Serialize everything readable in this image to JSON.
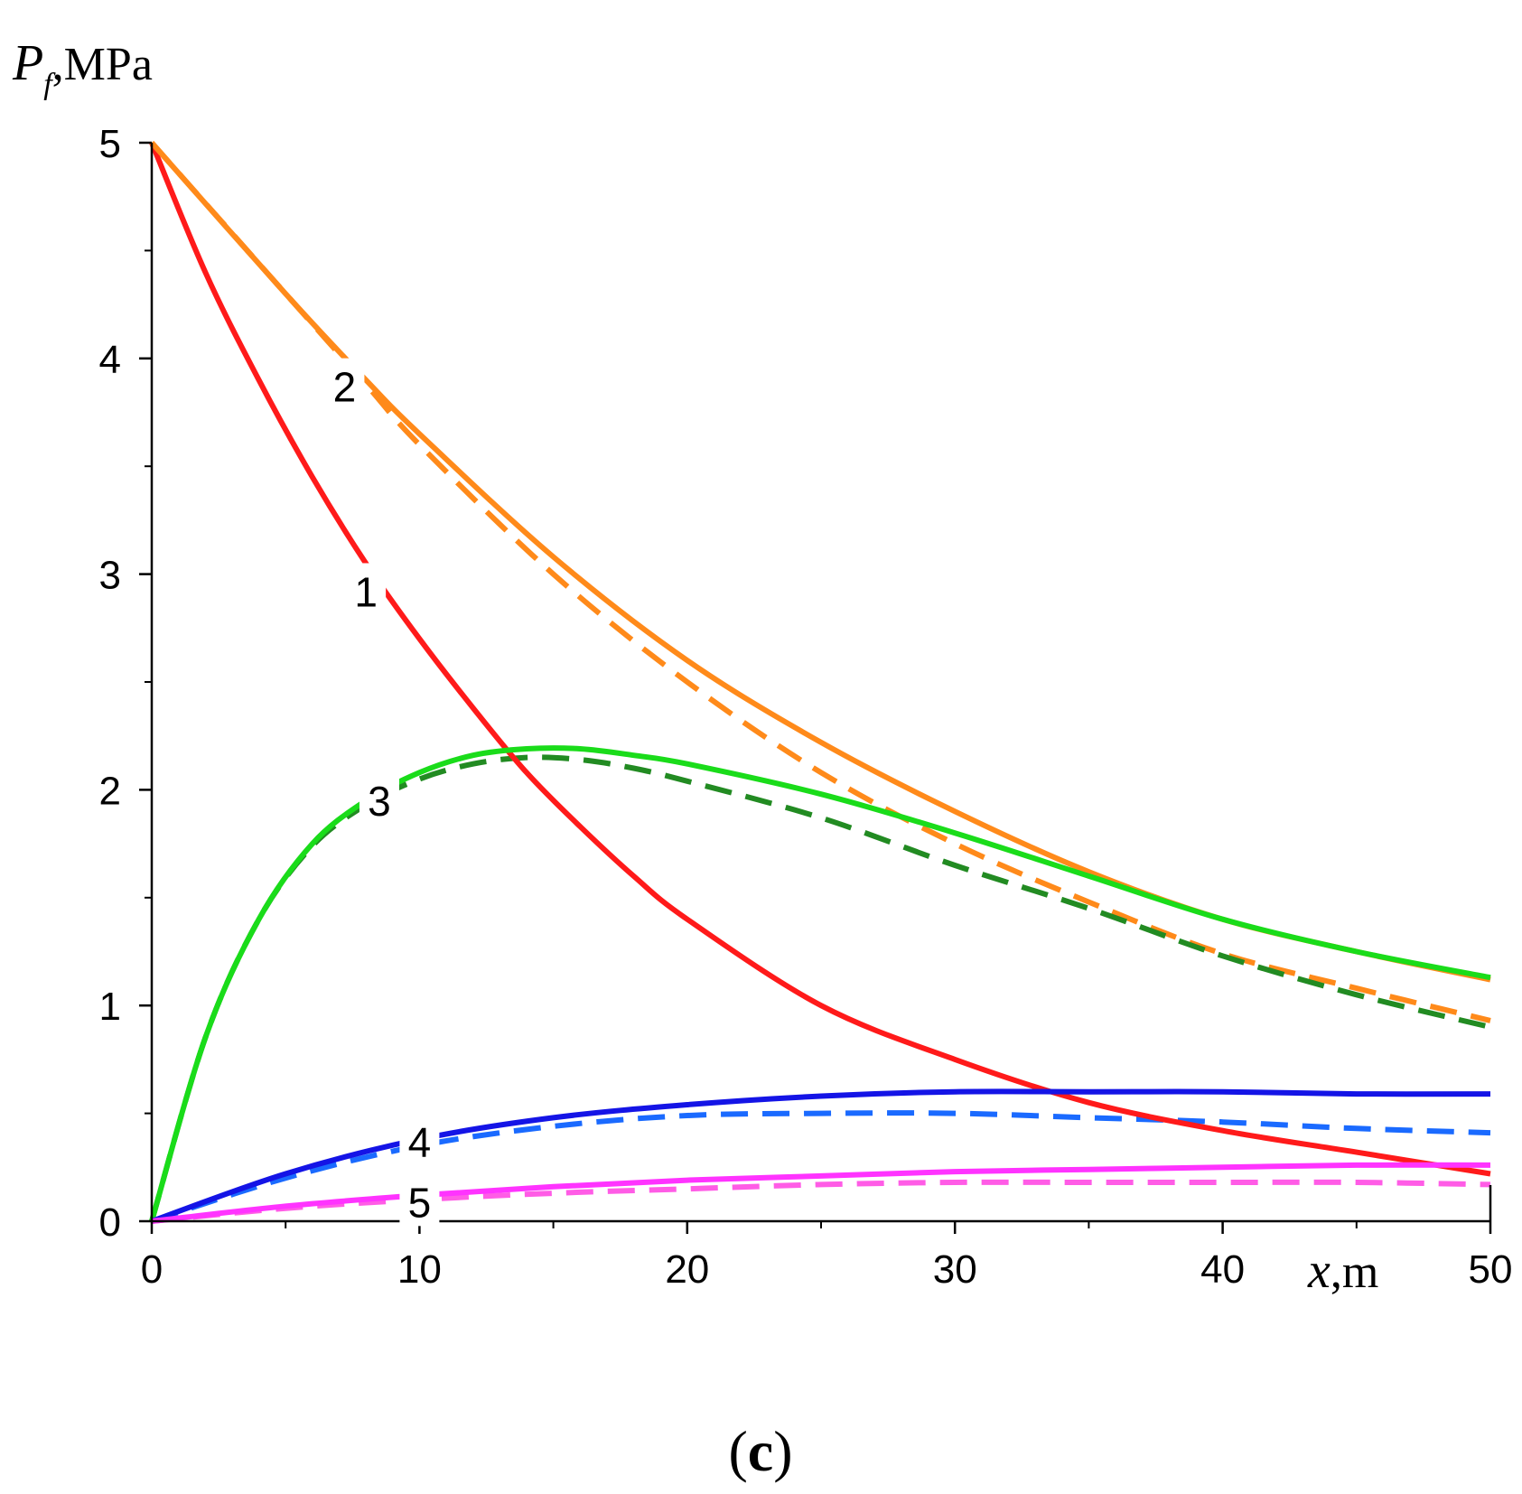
{
  "chart_data": {
    "type": "line",
    "caption": {
      "open": "(",
      "letter": "c",
      "close": ")"
    },
    "ylabel": {
      "symbol": "P",
      "subscript": "f",
      "unit": ",MPa"
    },
    "xlabel": {
      "symbol": "x",
      "unit": ",m"
    },
    "xlim": [
      0,
      50
    ],
    "ylim": [
      0,
      5
    ],
    "x_ticks": [
      "0",
      "10",
      "20",
      "30",
      "40",
      "50"
    ],
    "y_ticks": [
      "0",
      "1",
      "2",
      "3",
      "4",
      "5"
    ],
    "grid": false,
    "series": [
      {
        "name": "1",
        "style": "solid",
        "color": "#ff1a1a",
        "x": [
          0,
          2,
          4,
          6,
          8,
          10,
          12,
          14,
          16,
          18,
          20,
          25,
          30,
          35,
          40,
          45,
          50
        ],
        "y": [
          5.0,
          4.4,
          3.9,
          3.45,
          3.05,
          2.7,
          2.38,
          2.08,
          1.83,
          1.6,
          1.4,
          1.0,
          0.75,
          0.55,
          0.42,
          0.32,
          0.22
        ]
      },
      {
        "name": "2",
        "style": "solid",
        "color": "#ff8a1a",
        "x": [
          0,
          5,
          8,
          10,
          15,
          20,
          25,
          30,
          35,
          40,
          45,
          50
        ],
        "y": [
          5.0,
          4.3,
          3.9,
          3.65,
          3.08,
          2.6,
          2.22,
          1.9,
          1.62,
          1.4,
          1.25,
          1.12
        ]
      },
      {
        "name": "2 (dashed)",
        "style": "dashed",
        "color": "#ff8a1a",
        "x": [
          0,
          5,
          8,
          10,
          15,
          20,
          25,
          30,
          35,
          40,
          45,
          50
        ],
        "y": [
          5.0,
          4.3,
          3.88,
          3.6,
          3.0,
          2.5,
          2.08,
          1.75,
          1.48,
          1.24,
          1.08,
          0.93
        ]
      },
      {
        "name": "3",
        "style": "solid",
        "color": "#1adc1a",
        "x": [
          0,
          2,
          4,
          6,
          8,
          10,
          12,
          14,
          16,
          18,
          20,
          25,
          30,
          35,
          40,
          45,
          50
        ],
        "y": [
          0,
          0.85,
          1.4,
          1.75,
          1.95,
          2.08,
          2.16,
          2.19,
          2.19,
          2.16,
          2.12,
          1.98,
          1.8,
          1.6,
          1.4,
          1.25,
          1.13
        ]
      },
      {
        "name": "3 (dashed)",
        "style": "dashed",
        "color": "#228b22",
        "x": [
          0,
          2,
          4,
          6,
          8,
          10,
          12,
          14,
          16,
          18,
          20,
          25,
          30,
          35,
          40,
          45,
          50
        ],
        "y": [
          0,
          0.85,
          1.4,
          1.74,
          1.93,
          2.05,
          2.12,
          2.15,
          2.14,
          2.1,
          2.04,
          1.87,
          1.65,
          1.45,
          1.23,
          1.05,
          0.9
        ]
      },
      {
        "name": "4",
        "style": "solid",
        "color": "#1414e6",
        "x": [
          0,
          5,
          10,
          15,
          20,
          25,
          30,
          35,
          40,
          45,
          50
        ],
        "y": [
          0,
          0.22,
          0.38,
          0.48,
          0.54,
          0.58,
          0.6,
          0.6,
          0.6,
          0.59,
          0.59
        ]
      },
      {
        "name": "4 (dashed)",
        "style": "dashed",
        "color": "#1a6aff",
        "x": [
          0,
          5,
          10,
          15,
          20,
          25,
          30,
          35,
          40,
          45,
          50
        ],
        "y": [
          0,
          0.2,
          0.35,
          0.44,
          0.49,
          0.5,
          0.5,
          0.48,
          0.46,
          0.43,
          0.41
        ]
      },
      {
        "name": "5",
        "style": "solid",
        "color": "#ff33ff",
        "x": [
          0,
          5,
          10,
          15,
          20,
          25,
          30,
          35,
          40,
          45,
          50
        ],
        "y": [
          0,
          0.07,
          0.12,
          0.16,
          0.19,
          0.21,
          0.23,
          0.24,
          0.25,
          0.26,
          0.26
        ]
      },
      {
        "name": "5 (dashed)",
        "style": "dashed",
        "color": "#ff5ce6",
        "x": [
          0,
          5,
          10,
          15,
          20,
          25,
          30,
          35,
          40,
          45,
          50
        ],
        "y": [
          0,
          0.06,
          0.1,
          0.13,
          0.15,
          0.17,
          0.18,
          0.18,
          0.18,
          0.18,
          0.17
        ]
      }
    ],
    "curve_labels": [
      {
        "text": "2",
        "x": 7.2,
        "y": 3.85
      },
      {
        "text": "1",
        "x": 8.0,
        "y": 2.9
      },
      {
        "text": "3",
        "x": 8.5,
        "y": 1.93
      },
      {
        "text": "4",
        "x": 10.0,
        "y": 0.35
      },
      {
        "text": "5",
        "x": 10.0,
        "y": 0.07
      }
    ]
  }
}
